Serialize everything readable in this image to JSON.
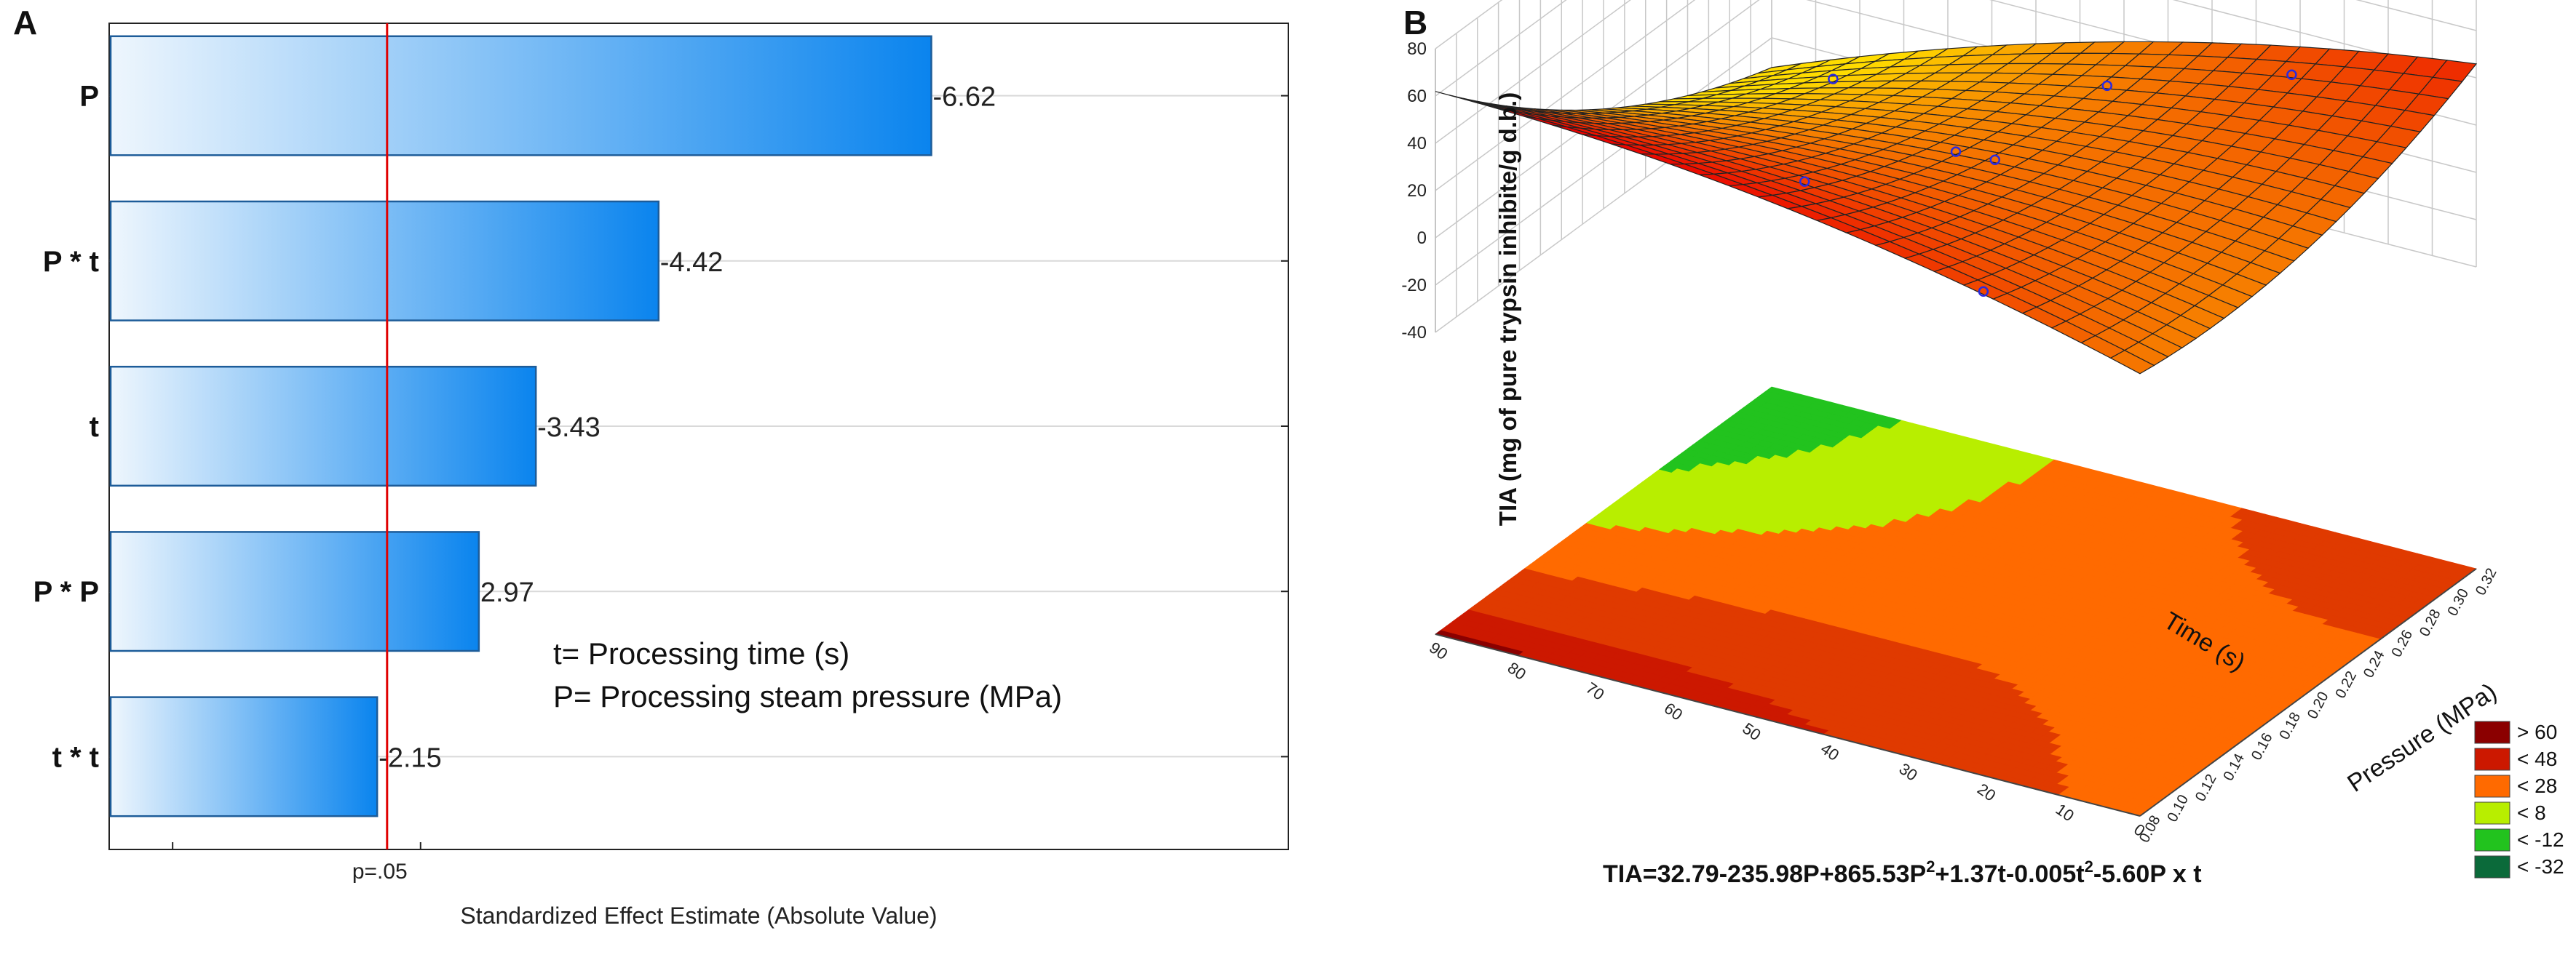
{
  "panels": {
    "a": {
      "label": "A",
      "chart_data": {
        "type": "bar",
        "orientation": "horizontal",
        "title": "",
        "categories": [
          "P",
          "P * t",
          "t",
          "P * P",
          "t * t"
        ],
        "values": [
          -6.62,
          -4.42,
          -3.43,
          2.97,
          -2.15
        ],
        "value_labels": [
          "-6.62",
          "-4.42",
          "-3.43",
          "2.97",
          "-2.15"
        ],
        "xlabel": "Standardized Effect Estimate (Absolute Value)",
        "xlim": [
          0,
          9.5
        ],
        "reference_line": {
          "value": 2.23,
          "label": "p=.05",
          "color": "#e00000"
        },
        "annotations": [
          "t= Processing time (s)",
          "P= Processing steam pressure (MPa)"
        ],
        "colors": {
          "bar_start": "#eef6fd",
          "bar_end": "#0a84ee",
          "bar_edge": "#1d5c99"
        }
      }
    },
    "b": {
      "label": "B",
      "chart_data": {
        "type": "surface3d",
        "zlabel": "TIA (mg of pure trypsin inhibite/g d.b.)",
        "zlim": [
          -40,
          80
        ],
        "z_ticks": [
          "80",
          "60",
          "40",
          "20",
          "0",
          "-20",
          "-40"
        ],
        "x_axis": {
          "label": "Pressure (MPa)",
          "ticks": [
            "0.08",
            "0.10",
            "0.12",
            "0.14",
            "0.16",
            "0.18",
            "0.20",
            "0.22",
            "0.24",
            "0.26",
            "0.28",
            "0.30",
            "0.32"
          ]
        },
        "y_axis": {
          "label": "Time (s)",
          "ticks": [
            "0",
            "10",
            "20",
            "30",
            "40",
            "50",
            "60",
            "70",
            "80",
            "90"
          ]
        },
        "equation": {
          "prefix": "TIA=32.79-235.98P+865.53P",
          "sup1": "2",
          "mid": "+1.37t-0.005t",
          "sup2": "2",
          "suffix": "-5.60P  x t"
        },
        "model": {
          "intercept": 32.79,
          "P": -235.98,
          "P2": 865.53,
          "t": 1.37,
          "t2": -0.005,
          "Pt": -5.6
        },
        "observed_points": [
          {
            "P": 0.08,
            "t": 20
          },
          {
            "P": 0.12,
            "t": 50
          },
          {
            "P": 0.2,
            "t": 40
          },
          {
            "P": 0.2,
            "t": 45
          },
          {
            "P": 0.28,
            "t": 40
          },
          {
            "P": 0.28,
            "t": 75
          },
          {
            "P": 0.3,
            "t": 20
          }
        ],
        "legend": [
          {
            "label": "> 60",
            "color": "#8b0000"
          },
          {
            "label": "< 48",
            "color": "#cc1800"
          },
          {
            "label": "< 28",
            "color": "#ff6a00"
          },
          {
            "label": "< 8",
            "color": "#b8ee00"
          },
          {
            "label": "< -12",
            "color": "#22c31e"
          },
          {
            "label": "< -32",
            "color": "#0b6a3a"
          }
        ]
      }
    }
  }
}
